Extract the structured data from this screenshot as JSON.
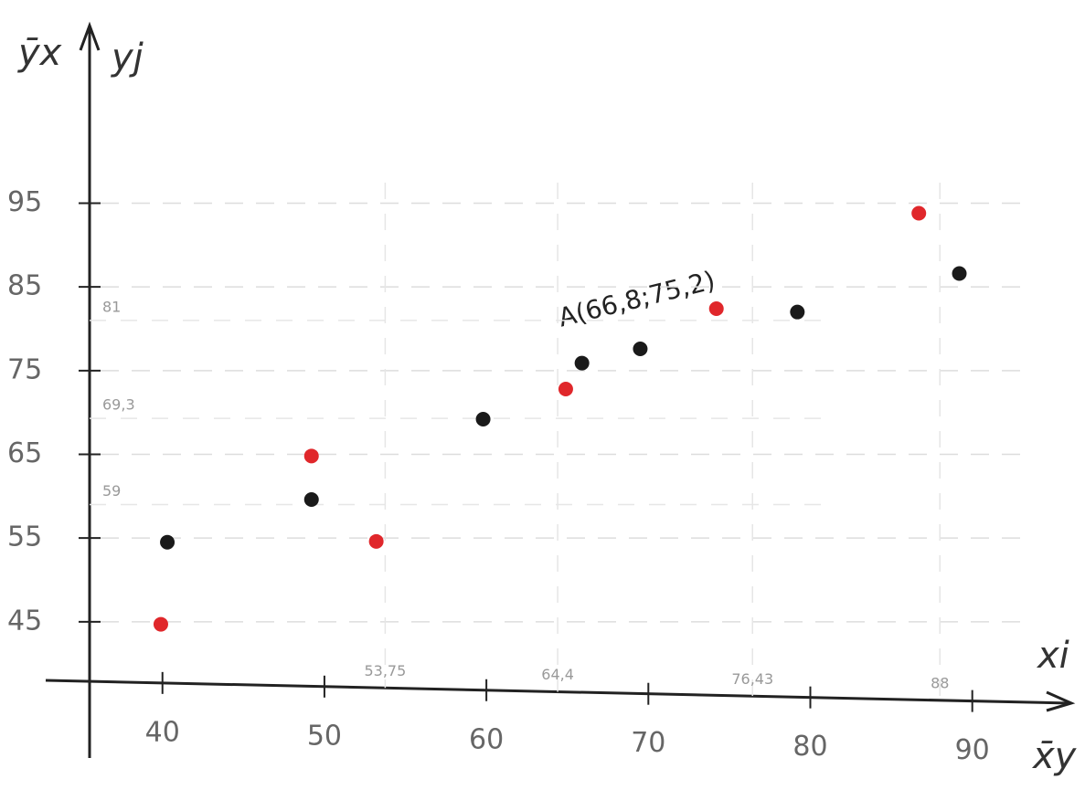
{
  "chart_data": {
    "type": "scatter",
    "y_axis_labels": [
      "ȳx",
      "yj"
    ],
    "x_axis_labels": [
      "xi",
      "x̄y"
    ],
    "xlim": [
      35.5,
      96
    ],
    "ylim": [
      38,
      116
    ],
    "xticks": [
      40,
      50,
      60,
      70,
      80,
      90
    ],
    "yticks": [
      45,
      55,
      65,
      75,
      85,
      95
    ],
    "x_marks": [
      {
        "value": 53.75,
        "label": "53,75"
      },
      {
        "value": 64.4,
        "label": "64,4"
      },
      {
        "value": 76.43,
        "label": "76,43"
      },
      {
        "value": 88,
        "label": "88"
      }
    ],
    "y_marks": [
      {
        "value": 81,
        "label": "81"
      },
      {
        "value": 69.3,
        "label": "69,3"
      },
      {
        "value": 59,
        "label": "59"
      }
    ],
    "annotation": "A(66,8;75,2)",
    "series": [
      {
        "color": "#1a1a1a",
        "x": [
          40.3,
          49.2,
          59.8,
          65.9,
          69.5,
          79.2,
          89.2
        ],
        "values": [
          54.5,
          59.6,
          69.2,
          75.9,
          77.6,
          82.0,
          86.6
        ]
      },
      {
        "color": "#e0272b",
        "x": [
          39.9,
          49.2,
          53.2,
          64.9,
          74.2,
          86.7
        ],
        "values": [
          44.7,
          64.8,
          54.6,
          72.8,
          82.4,
          93.8
        ]
      }
    ]
  }
}
